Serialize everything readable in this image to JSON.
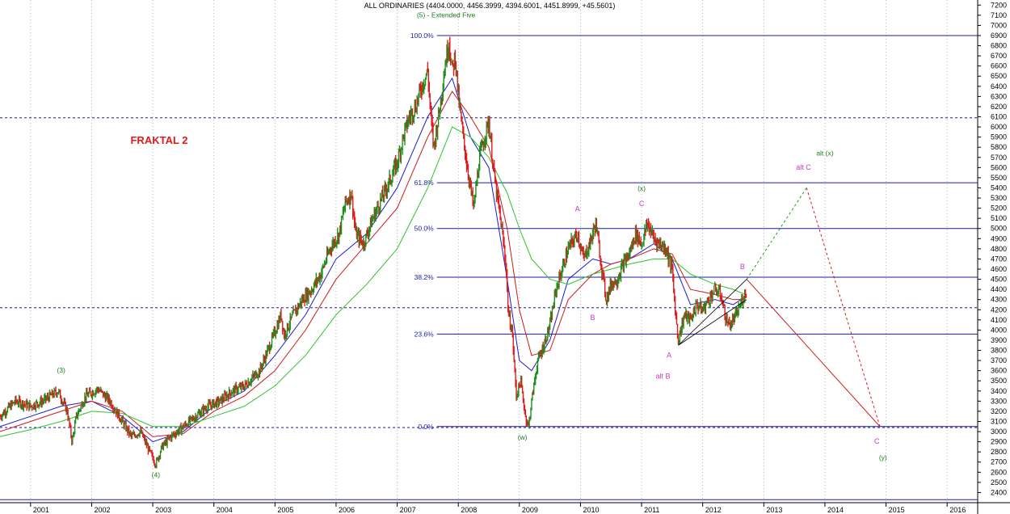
{
  "chart_data": {
    "type": "line",
    "title": "ALL ORDINARIES (4404.0000, 4456.3999, 4394.6001, 4451.8999, +45.5601)",
    "fractal_label": "FRAKTAL 2",
    "y_axis": {
      "range": [
        2300,
        7250
      ],
      "ticks": [
        2400,
        2500,
        2600,
        2700,
        2800,
        2900,
        3000,
        3100,
        3200,
        3300,
        3400,
        3500,
        3600,
        3700,
        3800,
        3900,
        4000,
        4100,
        4200,
        4300,
        4400,
        4500,
        4600,
        4700,
        4800,
        4900,
        5000,
        5100,
        5200,
        5300,
        5400,
        5500,
        5600,
        5700,
        5800,
        5900,
        6000,
        6100,
        6200,
        6300,
        6400,
        6500,
        6600,
        6700,
        6800,
        6900,
        7000,
        7100,
        7200
      ]
    },
    "x_axis": {
      "range": [
        2000.5,
        2016.5
      ],
      "ticks": [
        {
          "label": "2001",
          "x": 2001.0
        },
        {
          "label": "2002",
          "x": 2002.0
        },
        {
          "label": "2003",
          "x": 2003.0
        },
        {
          "label": "2004",
          "x": 2004.0
        },
        {
          "label": "2005",
          "x": 2005.0
        },
        {
          "label": "2006",
          "x": 2006.0
        },
        {
          "label": "2007",
          "x": 2007.0
        },
        {
          "label": "2008",
          "x": 2008.0
        },
        {
          "label": "2009",
          "x": 2009.0
        },
        {
          "label": "2010",
          "x": 2010.0
        },
        {
          "label": "2011",
          "x": 2011.0
        },
        {
          "label": "2012",
          "x": 2012.0
        },
        {
          "label": "2013",
          "x": 2013.0
        },
        {
          "label": "2014",
          "x": 2014.0
        },
        {
          "label": "2015",
          "x": 2015.0
        },
        {
          "label": "2016",
          "x": 2016.0
        }
      ]
    },
    "colors": {
      "up": "#1f8f1f",
      "down": "#e01b1b",
      "fib": "#1a1aa6",
      "ma_blue": "#1a1acc",
      "ma_red": "#cc1a1a",
      "ma_green": "#2fc42f",
      "alt_projection": "#1d9a1d",
      "projection": "#d01a1a",
      "wave_green": "#1d7a1d",
      "wave_magenta": "#c43bc4",
      "grid": "#9a9a9a"
    },
    "price_path": [
      [
        2000.5,
        3150
      ],
      [
        2000.75,
        3300
      ],
      [
        2001.0,
        3250
      ],
      [
        2001.2,
        3300
      ],
      [
        2001.45,
        3400
      ],
      [
        2001.6,
        3200
      ],
      [
        2001.68,
        2900
      ],
      [
        2001.75,
        3150
      ],
      [
        2001.9,
        3350
      ],
      [
        2002.1,
        3420
      ],
      [
        2002.3,
        3300
      ],
      [
        2002.45,
        3150
      ],
      [
        2002.55,
        3050
      ],
      [
        2002.65,
        2950
      ],
      [
        2002.8,
        3000
      ],
      [
        2002.95,
        2800
      ],
      [
        2003.05,
        2680
      ],
      [
        2003.15,
        2850
      ],
      [
        2003.3,
        2950
      ],
      [
        2003.5,
        3050
      ],
      [
        2003.7,
        3150
      ],
      [
        2003.9,
        3250
      ],
      [
        2004.1,
        3300
      ],
      [
        2004.3,
        3400
      ],
      [
        2004.5,
        3450
      ],
      [
        2004.75,
        3600
      ],
      [
        2004.95,
        3900
      ],
      [
        2005.1,
        4150
      ],
      [
        2005.15,
        3950
      ],
      [
        2005.3,
        4150
      ],
      [
        2005.45,
        4300
      ],
      [
        2005.6,
        4400
      ],
      [
        2005.75,
        4550
      ],
      [
        2005.9,
        4800
      ],
      [
        2006.05,
        4950
      ],
      [
        2006.15,
        5250
      ],
      [
        2006.25,
        5350
      ],
      [
        2006.32,
        4950
      ],
      [
        2006.45,
        4850
      ],
      [
        2006.6,
        5100
      ],
      [
        2006.75,
        5300
      ],
      [
        2006.9,
        5500
      ],
      [
        2007.0,
        5650
      ],
      [
        2007.1,
        5900
      ],
      [
        2007.2,
        6100
      ],
      [
        2007.3,
        6200
      ],
      [
        2007.4,
        6400
      ],
      [
        2007.5,
        6550
      ],
      [
        2007.55,
        6100
      ],
      [
        2007.6,
        5800
      ],
      [
        2007.7,
        6200
      ],
      [
        2007.78,
        6600
      ],
      [
        2007.85,
        6850
      ],
      [
        2007.9,
        6550
      ],
      [
        2007.95,
        6700
      ],
      [
        2008.0,
        6300
      ],
      [
        2008.08,
        5900
      ],
      [
        2008.15,
        5600
      ],
      [
        2008.25,
        5200
      ],
      [
        2008.35,
        5700
      ],
      [
        2008.45,
        5950
      ],
      [
        2008.5,
        6050
      ],
      [
        2008.6,
        5450
      ],
      [
        2008.7,
        5050
      ],
      [
        2008.78,
        4650
      ],
      [
        2008.82,
        4150
      ],
      [
        2008.88,
        4000
      ],
      [
        2008.95,
        3350
      ],
      [
        2009.02,
        3500
      ],
      [
        2009.1,
        3150
      ],
      [
        2009.15,
        3050
      ],
      [
        2009.2,
        3300
      ],
      [
        2009.3,
        3700
      ],
      [
        2009.4,
        3850
      ],
      [
        2009.5,
        4050
      ],
      [
        2009.6,
        4400
      ],
      [
        2009.7,
        4600
      ],
      [
        2009.8,
        4800
      ],
      [
        2009.95,
        4950
      ],
      [
        2010.05,
        4700
      ],
      [
        2010.15,
        4850
      ],
      [
        2010.25,
        5050
      ],
      [
        2010.35,
        4600
      ],
      [
        2010.42,
        4300
      ],
      [
        2010.5,
        4450
      ],
      [
        2010.6,
        4500
      ],
      [
        2010.7,
        4650
      ],
      [
        2010.8,
        4750
      ],
      [
        2010.9,
        4950
      ],
      [
        2011.0,
        4850
      ],
      [
        2011.1,
        5050
      ],
      [
        2011.2,
        4900
      ],
      [
        2011.3,
        4850
      ],
      [
        2011.4,
        4800
      ],
      [
        2011.5,
        4600
      ],
      [
        2011.55,
        4200
      ],
      [
        2011.6,
        3900
      ],
      [
        2011.7,
        4150
      ],
      [
        2011.8,
        4100
      ],
      [
        2011.9,
        4250
      ],
      [
        2012.0,
        4200
      ],
      [
        2012.1,
        4300
      ],
      [
        2012.2,
        4400
      ],
      [
        2012.3,
        4350
      ],
      [
        2012.38,
        4100
      ],
      [
        2012.45,
        4050
      ],
      [
        2012.55,
        4150
      ],
      [
        2012.65,
        4300
      ],
      [
        2012.72,
        4400
      ]
    ],
    "moving_averages": [
      {
        "color": "ma_blue",
        "points": [
          [
            2000.5,
            3050
          ],
          [
            2001.0,
            3150
          ],
          [
            2001.5,
            3250
          ],
          [
            2002.0,
            3300
          ],
          [
            2002.5,
            3150
          ],
          [
            2003.0,
            2900
          ],
          [
            2003.5,
            3000
          ],
          [
            2004.0,
            3250
          ],
          [
            2004.5,
            3400
          ],
          [
            2005.0,
            3750
          ],
          [
            2005.5,
            4150
          ],
          [
            2006.0,
            4700
          ],
          [
            2006.5,
            4950
          ],
          [
            2007.0,
            5400
          ],
          [
            2007.5,
            6100
          ],
          [
            2007.9,
            6480
          ],
          [
            2008.2,
            5900
          ],
          [
            2008.5,
            5600
          ],
          [
            2008.8,
            4500
          ],
          [
            2009.0,
            3700
          ],
          [
            2009.2,
            3600
          ],
          [
            2009.5,
            3900
          ],
          [
            2009.8,
            4500
          ],
          [
            2010.2,
            4700
          ],
          [
            2010.5,
            4650
          ],
          [
            2010.8,
            4700
          ],
          [
            2011.2,
            4850
          ],
          [
            2011.5,
            4700
          ],
          [
            2011.8,
            4250
          ],
          [
            2012.2,
            4300
          ],
          [
            2012.5,
            4250
          ],
          [
            2012.7,
            4330
          ]
        ]
      },
      {
        "color": "ma_red",
        "points": [
          [
            2000.5,
            3000
          ],
          [
            2001.0,
            3100
          ],
          [
            2001.5,
            3200
          ],
          [
            2002.0,
            3300
          ],
          [
            2002.5,
            3200
          ],
          [
            2003.0,
            2950
          ],
          [
            2003.5,
            2980
          ],
          [
            2004.0,
            3200
          ],
          [
            2004.5,
            3350
          ],
          [
            2005.0,
            3600
          ],
          [
            2005.5,
            4000
          ],
          [
            2006.0,
            4500
          ],
          [
            2006.5,
            4850
          ],
          [
            2007.0,
            5200
          ],
          [
            2007.5,
            5900
          ],
          [
            2007.9,
            6350
          ],
          [
            2008.2,
            6100
          ],
          [
            2008.5,
            5800
          ],
          [
            2008.8,
            5000
          ],
          [
            2009.0,
            4200
          ],
          [
            2009.2,
            3750
          ],
          [
            2009.5,
            3800
          ],
          [
            2009.8,
            4300
          ],
          [
            2010.2,
            4550
          ],
          [
            2010.5,
            4650
          ],
          [
            2010.8,
            4700
          ],
          [
            2011.2,
            4800
          ],
          [
            2011.5,
            4750
          ],
          [
            2011.8,
            4400
          ],
          [
            2012.2,
            4350
          ],
          [
            2012.5,
            4300
          ],
          [
            2012.7,
            4300
          ]
        ]
      },
      {
        "color": "ma_green",
        "points": [
          [
            2000.5,
            2950
          ],
          [
            2001.0,
            3020
          ],
          [
            2001.5,
            3100
          ],
          [
            2002.0,
            3200
          ],
          [
            2002.5,
            3180
          ],
          [
            2003.0,
            3050
          ],
          [
            2003.5,
            3050
          ],
          [
            2004.0,
            3150
          ],
          [
            2004.5,
            3250
          ],
          [
            2005.0,
            3450
          ],
          [
            2005.5,
            3750
          ],
          [
            2006.0,
            4150
          ],
          [
            2006.5,
            4450
          ],
          [
            2007.0,
            4800
          ],
          [
            2007.5,
            5400
          ],
          [
            2007.9,
            6000
          ],
          [
            2008.2,
            5900
          ],
          [
            2008.5,
            5700
          ],
          [
            2008.8,
            5350
          ],
          [
            2009.0,
            5000
          ],
          [
            2009.2,
            4700
          ],
          [
            2009.5,
            4500
          ],
          [
            2009.8,
            4450
          ],
          [
            2010.2,
            4550
          ],
          [
            2010.5,
            4600
          ],
          [
            2010.8,
            4650
          ],
          [
            2011.2,
            4700
          ],
          [
            2011.5,
            4700
          ],
          [
            2011.8,
            4550
          ],
          [
            2012.2,
            4450
          ],
          [
            2012.5,
            4400
          ],
          [
            2012.7,
            4350
          ]
        ]
      }
    ],
    "triangle": [
      [
        2011.6,
        3850
      ],
      [
        2012.72,
        4500
      ],
      [
        2012.72,
        4300
      ]
    ],
    "fib_levels": [
      {
        "label": "100.0%",
        "value": 6900
      },
      {
        "label": "61.8%",
        "value": 5450
      },
      {
        "label": "50.0%",
        "value": 5000
      },
      {
        "label": "38.2%",
        "value": 4520
      },
      {
        "label": "23.6%",
        "value": 3960
      },
      {
        "label": "0.0%",
        "value": 3050
      }
    ],
    "extra_levels": [
      6090,
      4220,
      2330
    ],
    "fib_line_start_x": 2007.65,
    "extra_dashed_levels": [
      6090,
      4220,
      3040
    ],
    "projections": [
      {
        "color": "alt_projection",
        "dashed": true,
        "points": [
          [
            2012.72,
            4500
          ],
          [
            2013.7,
            5400
          ]
        ]
      },
      {
        "color": "projection",
        "dashed": true,
        "points": [
          [
            2013.7,
            5400
          ],
          [
            2014.9,
            3050
          ]
        ]
      },
      {
        "color": "projection",
        "dashed": false,
        "points": [
          [
            2012.72,
            4500
          ],
          [
            2014.9,
            3050
          ]
        ]
      }
    ],
    "annotations": [
      {
        "text": "(5) - Extended Five",
        "x": 2007.8,
        "y": 7080,
        "style": "green"
      },
      {
        "text": "(3)",
        "x": 2001.5,
        "y": 3580,
        "style": "green"
      },
      {
        "text": "(4)",
        "x": 2003.05,
        "y": 2550,
        "style": "green"
      },
      {
        "text": "(w)",
        "x": 2009.05,
        "y": 2920,
        "style": "green"
      },
      {
        "text": "(x)",
        "x": 2011.0,
        "y": 5370,
        "style": "green"
      },
      {
        "text": "alt (x)",
        "x": 2014.0,
        "y": 5720,
        "style": "green"
      },
      {
        "text": "(y)",
        "x": 2014.95,
        "y": 2720,
        "style": "green"
      },
      {
        "text": "A",
        "x": 2009.95,
        "y": 5170,
        "style": "magenta"
      },
      {
        "text": "B",
        "x": 2010.2,
        "y": 4100,
        "style": "magenta"
      },
      {
        "text": "C",
        "x": 2011.0,
        "y": 5220,
        "style": "magenta"
      },
      {
        "text": "A",
        "x": 2011.45,
        "y": 3730,
        "style": "magenta"
      },
      {
        "text": "alt B",
        "x": 2011.35,
        "y": 3520,
        "style": "magenta"
      },
      {
        "text": "B",
        "x": 2012.65,
        "y": 4600,
        "style": "magenta"
      },
      {
        "text": "alt C",
        "x": 2013.65,
        "y": 5580,
        "style": "magenta"
      },
      {
        "text": "C",
        "x": 2014.85,
        "y": 2880,
        "style": "magenta"
      }
    ]
  }
}
